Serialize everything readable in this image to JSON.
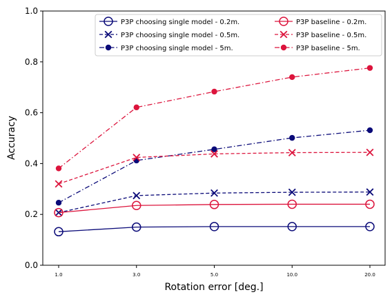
{
  "chart_data": {
    "type": "line",
    "title": "",
    "xlabel": "Rotation error [deg.]",
    "ylabel": "Accuracy",
    "categories": [
      "1.0",
      "3.0",
      "5.0",
      "10.0",
      "20.0"
    ],
    "ylim": [
      0,
      1.0
    ],
    "yticks": [
      "0.0",
      "0.2",
      "0.4",
      "0.6",
      "0.8",
      "1.0"
    ],
    "grid": false,
    "legend_position": "top-right",
    "series": [
      {
        "name": "P3P choosing single model - 0.2m.",
        "color": "#0a0a78",
        "dash": "solid",
        "marker": "open-circle",
        "values": [
          0.132,
          0.15,
          0.152,
          0.152,
          0.152
        ]
      },
      {
        "name": "P3P choosing single model - 0.5m.",
        "color": "#0a0a78",
        "dash": "dashed",
        "marker": "x",
        "values": [
          0.207,
          0.274,
          0.284,
          0.287,
          0.288
        ]
      },
      {
        "name": "P3P choosing single model - 5m.",
        "color": "#0a0a78",
        "dash": "dashdot",
        "marker": "dot",
        "values": [
          0.246,
          0.412,
          0.456,
          0.501,
          0.531
        ]
      },
      {
        "name": "P3P baseline - 0.2m.",
        "color": "#dc143c",
        "dash": "solid",
        "marker": "open-circle",
        "values": [
          0.207,
          0.235,
          0.239,
          0.24,
          0.24
        ]
      },
      {
        "name": "P3P baseline - 0.5m.",
        "color": "#dc143c",
        "dash": "dashed",
        "marker": "x",
        "values": [
          0.32,
          0.424,
          0.438,
          0.443,
          0.444
        ]
      },
      {
        "name": "P3P baseline - 5m.",
        "color": "#dc143c",
        "dash": "dashdot",
        "marker": "dot",
        "values": [
          0.381,
          0.621,
          0.683,
          0.74,
          0.776
        ]
      }
    ]
  }
}
